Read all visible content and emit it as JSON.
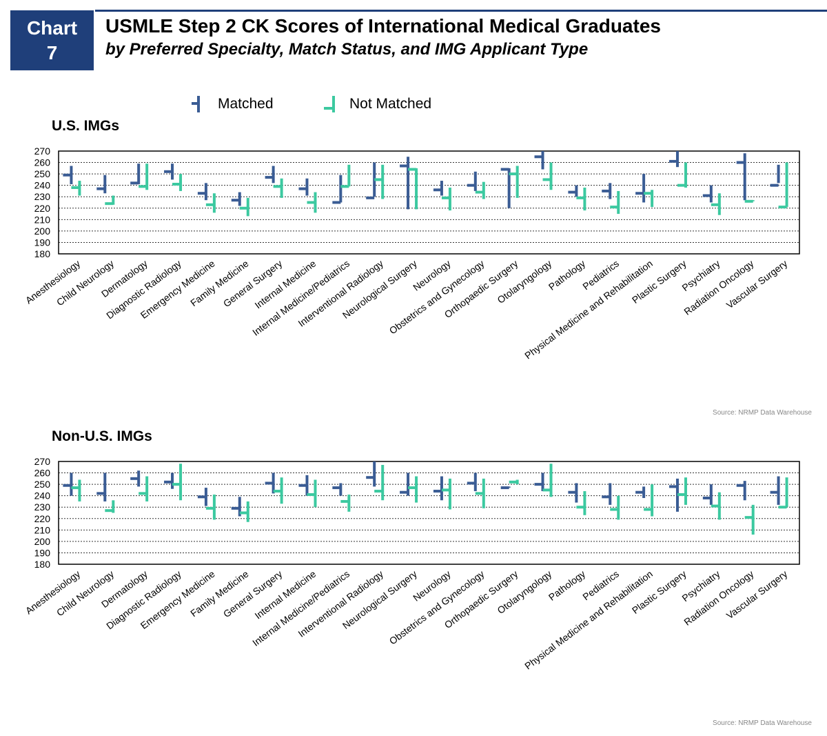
{
  "header": {
    "chart_number_label": "Chart",
    "chart_number": "7",
    "title": "USMLE Step 2 CK Scores of International Medical Graduates",
    "subtitle": "by Preferred Specialty, Match Status, and IMG Applicant Type"
  },
  "legend": {
    "matched": "Matched",
    "not_matched": "Not Matched"
  },
  "colors": {
    "matched": "#3a5c94",
    "not_matched": "#3cc9a0",
    "header_bg": "#1f3f7a"
  },
  "chart_data": [
    {
      "type": "range",
      "title": "U.S. IMGs",
      "source": "Source: NRMP Data Warehouse",
      "ylim": [
        180,
        270
      ],
      "yticks": [
        180,
        190,
        200,
        210,
        220,
        230,
        240,
        250,
        260,
        270
      ],
      "grid": true,
      "legend_position": "top",
      "categories": [
        "Anesthesiology",
        "Child Neurology",
        "Dermatology",
        "Diagnostic Radiology",
        "Emergency Medicine",
        "Family Medicine",
        "General Surgery",
        "Internal Medicine",
        "Internal Medicine/Pediatrics",
        "Interventional Radiology",
        "Neurological Surgery",
        "Neurology",
        "Obstetrics and Gynecology",
        "Orthopaedic Surgery",
        "Otolaryngology",
        "Pathology",
        "Pediatrics",
        "Physical Medicine and Rehabilitation",
        "Plastic Surgery",
        "Psychiatry",
        "Radiation Oncology",
        "Vascular Surgery"
      ],
      "series": [
        {
          "name": "Matched",
          "low": [
            241,
            233,
            241,
            245,
            227,
            222,
            242,
            231,
            225,
            230,
            219,
            231,
            235,
            220,
            254,
            230,
            228,
            225,
            256,
            225,
            227,
            242
          ],
          "high": [
            257,
            249,
            259,
            259,
            242,
            234,
            257,
            246,
            249,
            260,
            265,
            244,
            252,
            255,
            270,
            240,
            242,
            250,
            270,
            240,
            268,
            258
          ],
          "median": [
            249,
            237,
            242,
            252,
            233,
            227,
            247,
            237,
            225,
            229,
            257,
            236,
            240,
            254,
            265,
            234,
            235,
            233,
            261,
            231,
            260,
            240
          ]
        },
        {
          "name": "Not Matched",
          "low": [
            231,
            223,
            236,
            235,
            216,
            213,
            229,
            216,
            239,
            228,
            219,
            218,
            228,
            229,
            236,
            218,
            215,
            221,
            238,
            214,
            226,
            221
          ],
          "high": [
            244,
            231,
            259,
            250,
            233,
            229,
            246,
            234,
            258,
            258,
            255,
            238,
            243,
            257,
            260,
            238,
            235,
            236,
            260,
            233,
            227,
            260
          ],
          "median": [
            238,
            224,
            239,
            241,
            223,
            220,
            239,
            225,
            239,
            245,
            254,
            229,
            234,
            250,
            245,
            229,
            221,
            233,
            240,
            223,
            226,
            221
          ]
        }
      ]
    },
    {
      "type": "range",
      "title": "Non-U.S. IMGs",
      "source": "Source: NRMP Data Warehouse",
      "ylim": [
        180,
        270
      ],
      "yticks": [
        180,
        190,
        200,
        210,
        220,
        230,
        240,
        250,
        260,
        270
      ],
      "grid": true,
      "legend_position": "top",
      "categories": [
        "Anesthesiology",
        "Child Neurology",
        "Dermatology",
        "Diagnostic Radiology",
        "Emergency Medicine",
        "Family Medicine",
        "General Surgery",
        "Internal Medicine",
        "Internal Medicine/Pediatrics",
        "Interventional Radiology",
        "Neurological Surgery",
        "Neurology",
        "Obstetrics and Gynecology",
        "Orthopaedic Surgery",
        "Otolaryngology",
        "Pathology",
        "Pediatrics",
        "Physical Medicine and Rehabilitation",
        "Plastic Surgery",
        "Psychiatry",
        "Radiation Oncology",
        "Vascular Surgery"
      ],
      "series": [
        {
          "name": "Matched",
          "low": [
            240,
            235,
            248,
            246,
            231,
            222,
            242,
            240,
            240,
            248,
            240,
            236,
            244,
            247,
            244,
            234,
            232,
            238,
            226,
            232,
            236,
            232
          ],
          "high": [
            260,
            260,
            262,
            260,
            247,
            239,
            260,
            258,
            251,
            270,
            260,
            257,
            260,
            248,
            260,
            251,
            251,
            248,
            255,
            250,
            253,
            257
          ],
          "median": [
            249,
            242,
            255,
            252,
            239,
            229,
            251,
            249,
            247,
            256,
            243,
            244,
            251,
            247,
            250,
            243,
            239,
            243,
            248,
            238,
            249,
            243
          ]
        },
        {
          "name": "Not Matched",
          "low": [
            235,
            225,
            235,
            236,
            219,
            217,
            233,
            230,
            226,
            236,
            234,
            228,
            229,
            250,
            239,
            223,
            219,
            222,
            232,
            219,
            206,
            230
          ],
          "high": [
            254,
            236,
            257,
            268,
            241,
            235,
            256,
            254,
            241,
            267,
            257,
            255,
            255,
            254,
            268,
            244,
            240,
            250,
            256,
            243,
            232,
            256
          ],
          "median": [
            247,
            227,
            242,
            250,
            229,
            225,
            244,
            241,
            235,
            244,
            247,
            245,
            242,
            252,
            245,
            230,
            228,
            228,
            241,
            231,
            221,
            230
          ]
        }
      ]
    }
  ]
}
